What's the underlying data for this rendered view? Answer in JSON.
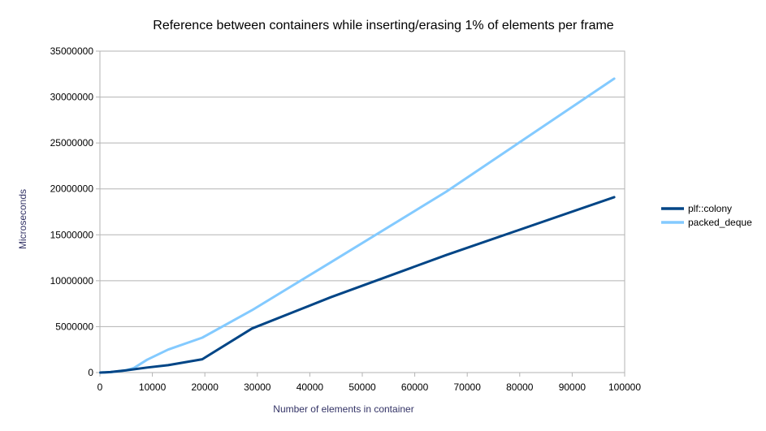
{
  "chart_data": {
    "type": "line",
    "title": "Reference between containers while inserting/erasing 1% of elements per frame",
    "xlabel": "Number of elements in container",
    "ylabel": "Microseconds",
    "xlim": [
      0,
      100000
    ],
    "ylim": [
      0,
      35000000
    ],
    "x_ticks": [
      "0",
      "10000",
      "20000",
      "30000",
      "40000",
      "50000",
      "60000",
      "70000",
      "80000",
      "90000",
      "100000"
    ],
    "y_ticks": [
      "0",
      "5000000",
      "10000000",
      "15000000",
      "20000000",
      "25000000",
      "30000000",
      "35000000"
    ],
    "grid": "horizontal",
    "legend_position": "right",
    "series": [
      {
        "name": "plf::colony",
        "color": "#004586",
        "points": [
          [
            100,
            0
          ],
          [
            1000,
            30000
          ],
          [
            2000,
            50000
          ],
          [
            5000,
            250000
          ],
          [
            9000,
            550000
          ],
          [
            13000,
            800000
          ],
          [
            19500,
            1450000
          ],
          [
            29000,
            4800000
          ],
          [
            44000,
            8200000
          ],
          [
            66000,
            12800000
          ],
          [
            98000,
            19100000
          ]
        ]
      },
      {
        "name": "packed_deque",
        "color": "#83caff",
        "points": [
          [
            100,
            0
          ],
          [
            1000,
            20000
          ],
          [
            2000,
            40000
          ],
          [
            5000,
            250000
          ],
          [
            6500,
            500000
          ],
          [
            9000,
            1400000
          ],
          [
            13000,
            2500000
          ],
          [
            19500,
            3800000
          ],
          [
            29000,
            6800000
          ],
          [
            44000,
            12000000
          ],
          [
            66000,
            19700000
          ],
          [
            98000,
            32000000
          ]
        ]
      }
    ]
  }
}
